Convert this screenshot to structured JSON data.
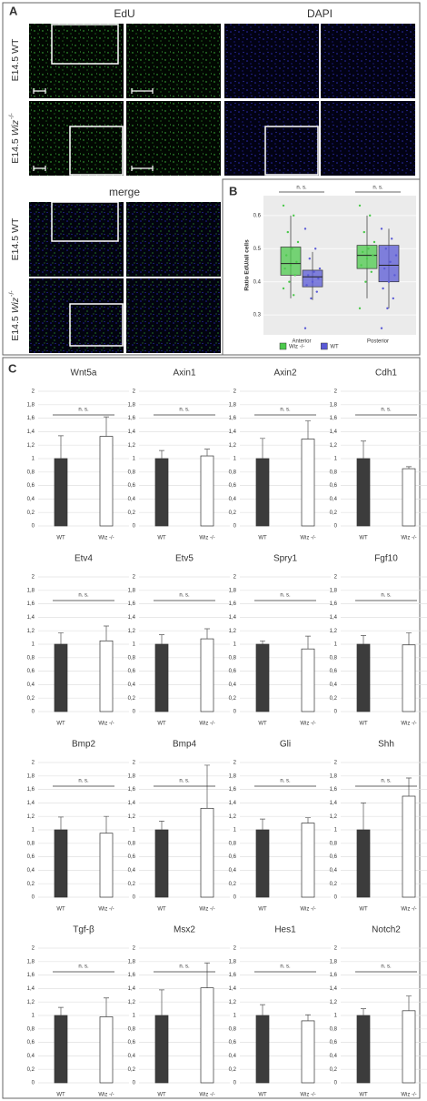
{
  "panel_labels": [
    "A",
    "B",
    "C"
  ],
  "panel_a": {
    "columns": [
      "EdU",
      "DAPI"
    ],
    "merge_title": "merge",
    "rows": [
      {
        "stage": "E14.5",
        "genotype": "WT"
      },
      {
        "stage": "E14.5",
        "genotype": "Wiz",
        "superscript": "-/-"
      },
      {
        "stage": "E14.5",
        "genotype": "WT"
      },
      {
        "stage": "E14.5",
        "genotype": "Wiz",
        "superscript": "-/-"
      }
    ]
  },
  "chart_data": [
    {
      "type": "box",
      "ylabel": "Ratio EdU/all cells",
      "categories": [
        "Anterior",
        "Posterior"
      ],
      "annotations": [
        "n. s.",
        "n. s."
      ],
      "ylim": [
        0.24,
        0.66
      ],
      "yticks": [
        0.3,
        0.4,
        0.5,
        0.6
      ],
      "grid": true,
      "legend": "bottom",
      "series": [
        {
          "name": "Wiz -/-",
          "color": "#4cc94c",
          "boxes": [
            {
              "min": 0.35,
              "q1": 0.42,
              "median": 0.455,
              "q3": 0.505,
              "max": 0.6,
              "points": [
                0.63,
                0.6,
                0.55,
                0.52,
                0.5,
                0.48,
                0.46,
                0.45,
                0.44,
                0.42,
                0.4,
                0.38,
                0.36
              ]
            },
            {
              "min": 0.35,
              "q1": 0.44,
              "median": 0.48,
              "q3": 0.51,
              "max": 0.6,
              "points": [
                0.63,
                0.6,
                0.55,
                0.52,
                0.5,
                0.49,
                0.48,
                0.47,
                0.45,
                0.43,
                0.4,
                0.32
              ]
            }
          ]
        },
        {
          "name": "WT",
          "color": "#5a5ad6",
          "boxes": [
            {
              "min": 0.345,
              "q1": 0.385,
              "median": 0.415,
              "q3": 0.435,
              "max": 0.49,
              "points": [
                0.56,
                0.5,
                0.47,
                0.44,
                0.43,
                0.42,
                0.41,
                0.4,
                0.39,
                0.37,
                0.35,
                0.26
              ]
            },
            {
              "min": 0.32,
              "q1": 0.4,
              "median": 0.45,
              "q3": 0.51,
              "max": 0.56,
              "points": [
                0.56,
                0.53,
                0.5,
                0.48,
                0.46,
                0.44,
                0.42,
                0.4,
                0.38,
                0.35,
                0.32,
                0.26
              ]
            }
          ]
        }
      ]
    },
    {
      "type": "bar",
      "title": "Wnt5a",
      "categories": [
        "WT",
        "Wiz -/-"
      ],
      "values": [
        1,
        1.33
      ],
      "errors": [
        0.34,
        0.29
      ],
      "colors": [
        "#3c3c3c",
        "#ffffff"
      ],
      "annotation": "n. s.",
      "ylim": [
        0,
        2
      ],
      "yticks": [
        0,
        {
          "value": 0.2,
          "label": "0,2"
        },
        {
          "value": 0.4,
          "label": "0,4"
        },
        {
          "value": 0.6,
          "label": "0,6"
        },
        {
          "value": 0.8,
          "label": "0,8"
        },
        1,
        {
          "value": 1.2,
          "label": "1,2"
        },
        {
          "value": 1.4,
          "label": "1,4"
        },
        {
          "value": 1.6,
          "label": "1,6"
        },
        {
          "value": 1.8,
          "label": "1,8"
        },
        2
      ],
      "grid": true
    },
    {
      "type": "bar",
      "title": "Axin1",
      "categories": [
        "WT",
        "Wiz -/-"
      ],
      "values": [
        1,
        1.04
      ],
      "errors": [
        0.12,
        0.1
      ],
      "colors": [
        "#3c3c3c",
        "#ffffff"
      ],
      "annotation": "n. s.",
      "ylim": [
        0,
        2
      ],
      "yticks": [
        0,
        {
          "value": 0.2,
          "label": "0,2"
        },
        {
          "value": 0.4,
          "label": "0,4"
        },
        {
          "value": 0.6,
          "label": "0,6"
        },
        {
          "value": 0.8,
          "label": "0,8"
        },
        1,
        {
          "value": 1.2,
          "label": "1,2"
        },
        {
          "value": 1.4,
          "label": "1,4"
        },
        {
          "value": 1.6,
          "label": "1,6"
        },
        {
          "value": 1.8,
          "label": "1,8"
        },
        2
      ],
      "grid": true
    },
    {
      "type": "bar",
      "title": "Axin2",
      "categories": [
        "WT",
        "Wiz -/-"
      ],
      "values": [
        1,
        1.29
      ],
      "errors": [
        0.3,
        0.27
      ],
      "colors": [
        "#3c3c3c",
        "#ffffff"
      ],
      "annotation": "n. s.",
      "ylim": [
        0,
        2
      ],
      "yticks": [
        0,
        {
          "value": 0.2,
          "label": "0,2"
        },
        {
          "value": 0.4,
          "label": "0,4"
        },
        {
          "value": 0.6,
          "label": "0,6"
        },
        {
          "value": 0.8,
          "label": "0,8"
        },
        1,
        {
          "value": 1.2,
          "label": "1,2"
        },
        {
          "value": 1.4,
          "label": "1,4"
        },
        {
          "value": 1.6,
          "label": "1,6"
        },
        {
          "value": 1.8,
          "label": "1,8"
        },
        2
      ],
      "grid": true
    },
    {
      "type": "bar",
      "title": "Cdh1",
      "categories": [
        "WT",
        "Wiz -/-"
      ],
      "values": [
        1,
        0.85
      ],
      "errors": [
        0.26,
        0.03
      ],
      "colors": [
        "#3c3c3c",
        "#ffffff"
      ],
      "annotation": "n. s.",
      "ylim": [
        0,
        2
      ],
      "yticks": [
        0,
        {
          "value": 0.2,
          "label": "0,2"
        },
        {
          "value": 0.4,
          "label": "0,4"
        },
        {
          "value": 0.6,
          "label": "0,6"
        },
        {
          "value": 0.8,
          "label": "0,8"
        },
        1,
        {
          "value": 1.2,
          "label": "1,2"
        },
        {
          "value": 1.4,
          "label": "1,4"
        },
        {
          "value": 1.6,
          "label": "1,6"
        },
        {
          "value": 1.8,
          "label": "1,8"
        },
        2
      ],
      "grid": true
    },
    {
      "type": "bar",
      "title": "Etv4",
      "categories": [
        "WT",
        "Wiz -/-"
      ],
      "values": [
        1,
        1.05
      ],
      "errors": [
        0.17,
        0.22
      ],
      "colors": [
        "#3c3c3c",
        "#ffffff"
      ],
      "annotation": "n. s.",
      "ylim": [
        0,
        2
      ],
      "yticks": [
        0,
        {
          "value": 0.2,
          "label": "0,2"
        },
        {
          "value": 0.4,
          "label": "0,4"
        },
        {
          "value": 0.6,
          "label": "0,6"
        },
        {
          "value": 0.8,
          "label": "0,8"
        },
        1,
        {
          "value": 1.2,
          "label": "1,2"
        },
        {
          "value": 1.4,
          "label": "1,4"
        },
        {
          "value": 1.6,
          "label": "1,6"
        },
        {
          "value": 1.8,
          "label": "1,8"
        },
        2
      ],
      "grid": true
    },
    {
      "type": "bar",
      "title": "Etv5",
      "categories": [
        "WT",
        "Wiz -/-"
      ],
      "values": [
        1,
        1.08
      ],
      "errors": [
        0.14,
        0.15
      ],
      "colors": [
        "#3c3c3c",
        "#ffffff"
      ],
      "annotation": "n. s.",
      "ylim": [
        0,
        2
      ],
      "yticks": [
        0,
        {
          "value": 0.2,
          "label": "0,2"
        },
        {
          "value": 0.4,
          "label": "0,4"
        },
        {
          "value": 0.6,
          "label": "0,6"
        },
        {
          "value": 0.8,
          "label": "0,8"
        },
        1,
        {
          "value": 1.2,
          "label": "1,2"
        },
        {
          "value": 1.4,
          "label": "1,4"
        },
        {
          "value": 1.6,
          "label": "1,6"
        },
        {
          "value": 1.8,
          "label": "1,8"
        },
        2
      ],
      "grid": true
    },
    {
      "type": "bar",
      "title": "Spry1",
      "categories": [
        "WT",
        "Wiz -/-"
      ],
      "values": [
        1,
        0.93
      ],
      "errors": [
        0.05,
        0.19
      ],
      "colors": [
        "#3c3c3c",
        "#ffffff"
      ],
      "annotation": "n. s.",
      "ylim": [
        0,
        2
      ],
      "yticks": [
        0,
        {
          "value": 0.2,
          "label": "0,2"
        },
        {
          "value": 0.4,
          "label": "0,4"
        },
        {
          "value": 0.6,
          "label": "0,6"
        },
        {
          "value": 0.8,
          "label": "0,8"
        },
        1,
        {
          "value": 1.2,
          "label": "1,2"
        },
        {
          "value": 1.4,
          "label": "1,4"
        },
        {
          "value": 1.6,
          "label": "1,6"
        },
        {
          "value": 1.8,
          "label": "1,8"
        },
        2
      ],
      "grid": true
    },
    {
      "type": "bar",
      "title": "Fgf10",
      "categories": [
        "WT",
        "Wiz -/-"
      ],
      "values": [
        1,
        0.99
      ],
      "errors": [
        0.13,
        0.18
      ],
      "colors": [
        "#3c3c3c",
        "#ffffff"
      ],
      "annotation": "n. s.",
      "ylim": [
        0,
        2
      ],
      "yticks": [
        0,
        {
          "value": 0.2,
          "label": "0,2"
        },
        {
          "value": 0.4,
          "label": "0,4"
        },
        {
          "value": 0.6,
          "label": "0,6"
        },
        {
          "value": 0.8,
          "label": "0,8"
        },
        1,
        {
          "value": 1.2,
          "label": "1,2"
        },
        {
          "value": 1.4,
          "label": "1,4"
        },
        {
          "value": 1.6,
          "label": "1,6"
        },
        {
          "value": 1.8,
          "label": "1,8"
        },
        2
      ],
      "grid": true
    },
    {
      "type": "bar",
      "title": "Bmp2",
      "categories": [
        "WT",
        "Wiz -/-"
      ],
      "values": [
        1,
        0.95
      ],
      "errors": [
        0.19,
        0.25
      ],
      "colors": [
        "#3c3c3c",
        "#ffffff"
      ],
      "annotation": "n. s.",
      "ylim": [
        0,
        2
      ],
      "yticks": [
        0,
        {
          "value": 0.2,
          "label": "0,2"
        },
        {
          "value": 0.4,
          "label": "0,4"
        },
        {
          "value": 0.6,
          "label": "0,6"
        },
        {
          "value": 0.8,
          "label": "0,8"
        },
        1,
        {
          "value": 1.2,
          "label": "1,2"
        },
        {
          "value": 1.4,
          "label": "1,4"
        },
        {
          "value": 1.6,
          "label": "1,6"
        },
        {
          "value": 1.8,
          "label": "1,8"
        },
        2
      ],
      "grid": true
    },
    {
      "type": "bar",
      "title": "Bmp4",
      "categories": [
        "WT",
        "Wiz -/-"
      ],
      "values": [
        1,
        1.32
      ],
      "errors": [
        0.13,
        0.64
      ],
      "colors": [
        "#3c3c3c",
        "#ffffff"
      ],
      "annotation": "n. s.",
      "ylim": [
        0,
        2
      ],
      "yticks": [
        0,
        {
          "value": 0.2,
          "label": "0,2"
        },
        {
          "value": 0.4,
          "label": "0,4"
        },
        {
          "value": 0.6,
          "label": "0,6"
        },
        {
          "value": 0.8,
          "label": "0,8"
        },
        1,
        {
          "value": 1.2,
          "label": "1,2"
        },
        {
          "value": 1.4,
          "label": "1,4"
        },
        {
          "value": 1.6,
          "label": "1,6"
        },
        {
          "value": 1.8,
          "label": "1,8"
        },
        2
      ],
      "grid": true
    },
    {
      "type": "bar",
      "title": "Gli",
      "categories": [
        "WT",
        "Wiz -/-"
      ],
      "values": [
        1,
        1.1
      ],
      "errors": [
        0.16,
        0.08
      ],
      "colors": [
        "#3c3c3c",
        "#ffffff"
      ],
      "annotation": "n. s.",
      "ylim": [
        0,
        2
      ],
      "yticks": [
        0,
        {
          "value": 0.2,
          "label": "0,2"
        },
        {
          "value": 0.4,
          "label": "0,4"
        },
        {
          "value": 0.6,
          "label": "0,6"
        },
        {
          "value": 0.8,
          "label": "0,8"
        },
        1,
        {
          "value": 1.2,
          "label": "1,2"
        },
        {
          "value": 1.4,
          "label": "1,4"
        },
        {
          "value": 1.6,
          "label": "1,6"
        },
        {
          "value": 1.8,
          "label": "1,8"
        },
        2
      ],
      "grid": true
    },
    {
      "type": "bar",
      "title": "Shh",
      "categories": [
        "WT",
        "Wiz -/-"
      ],
      "values": [
        1,
        1.5
      ],
      "errors": [
        0.4,
        0.27
      ],
      "colors": [
        "#3c3c3c",
        "#ffffff"
      ],
      "annotation": "n. s.",
      "ylim": [
        0,
        2
      ],
      "yticks": [
        0,
        {
          "value": 0.2,
          "label": "0,2"
        },
        {
          "value": 0.4,
          "label": "0,4"
        },
        {
          "value": 0.6,
          "label": "0,6"
        },
        {
          "value": 0.8,
          "label": "0,8"
        },
        1,
        {
          "value": 1.2,
          "label": "1,2"
        },
        {
          "value": 1.4,
          "label": "1,4"
        },
        {
          "value": 1.6,
          "label": "1,6"
        },
        {
          "value": 1.8,
          "label": "1,8"
        },
        2
      ],
      "grid": true
    },
    {
      "type": "bar",
      "title": "Tgf-β",
      "categories": [
        "WT",
        "Wiz -/-"
      ],
      "values": [
        1,
        0.98
      ],
      "errors": [
        0.12,
        0.28
      ],
      "colors": [
        "#3c3c3c",
        "#ffffff"
      ],
      "annotation": "n. s.",
      "ylim": [
        0,
        2
      ],
      "yticks": [
        0,
        {
          "value": 0.2,
          "label": "0,2"
        },
        {
          "value": 0.4,
          "label": "0,4"
        },
        {
          "value": 0.6,
          "label": "0,6"
        },
        {
          "value": 0.8,
          "label": "0,8"
        },
        1,
        {
          "value": 1.2,
          "label": "1,2"
        },
        {
          "value": 1.4,
          "label": "1,4"
        },
        {
          "value": 1.6,
          "label": "1,6"
        },
        {
          "value": 1.8,
          "label": "1,8"
        },
        2
      ],
      "grid": true
    },
    {
      "type": "bar",
      "title": "Msx2",
      "categories": [
        "WT",
        "Wiz -/-"
      ],
      "values": [
        1,
        1.41
      ],
      "errors": [
        0.38,
        0.37
      ],
      "colors": [
        "#3c3c3c",
        "#ffffff"
      ],
      "annotation": "n. s.",
      "ylim": [
        0,
        2
      ],
      "yticks": [
        0,
        {
          "value": 0.2,
          "label": "0,2"
        },
        {
          "value": 0.4,
          "label": "0,4"
        },
        {
          "value": 0.6,
          "label": "0,6"
        },
        {
          "value": 0.8,
          "label": "0,8"
        },
        1,
        {
          "value": 1.2,
          "label": "1,2"
        },
        {
          "value": 1.4,
          "label": "1,4"
        },
        {
          "value": 1.6,
          "label": "1,6"
        },
        {
          "value": 1.8,
          "label": "1,8"
        },
        2
      ],
      "grid": true
    },
    {
      "type": "bar",
      "title": "Hes1",
      "categories": [
        "WT",
        "Wiz -/-"
      ],
      "values": [
        1,
        0.92
      ],
      "errors": [
        0.16,
        0.09
      ],
      "colors": [
        "#3c3c3c",
        "#ffffff"
      ],
      "annotation": "n. s.",
      "ylim": [
        0,
        2
      ],
      "yticks": [
        0,
        {
          "value": 0.2,
          "label": "0,2"
        },
        {
          "value": 0.4,
          "label": "0,4"
        },
        {
          "value": 0.6,
          "label": "0,6"
        },
        {
          "value": 0.8,
          "label": "0,8"
        },
        1,
        {
          "value": 1.2,
          "label": "1,2"
        },
        {
          "value": 1.4,
          "label": "1,4"
        },
        {
          "value": 1.6,
          "label": "1,6"
        },
        {
          "value": 1.8,
          "label": "1,8"
        },
        2
      ],
      "grid": true
    },
    {
      "type": "bar",
      "title": "Notch2",
      "categories": [
        "WT",
        "Wiz -/-"
      ],
      "values": [
        1,
        1.07
      ],
      "errors": [
        0.1,
        0.22
      ],
      "colors": [
        "#3c3c3c",
        "#ffffff"
      ],
      "annotation": "n. s.",
      "ylim": [
        0,
        2
      ],
      "yticks": [
        0,
        {
          "value": 0.2,
          "label": "0,2"
        },
        {
          "value": 0.4,
          "label": "0,4"
        },
        {
          "value": 0.6,
          "label": "0,6"
        },
        {
          "value": 0.8,
          "label": "0,8"
        },
        1,
        {
          "value": 1.2,
          "label": "1,2"
        },
        {
          "value": 1.4,
          "label": "1,4"
        },
        {
          "value": 1.6,
          "label": "1,6"
        },
        {
          "value": 1.8,
          "label": "1,8"
        },
        2
      ],
      "grid": true
    }
  ]
}
